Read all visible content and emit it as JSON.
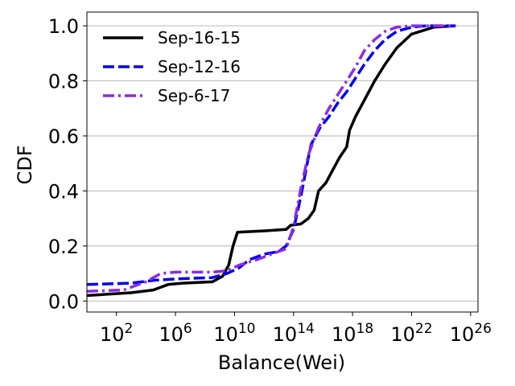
{
  "chart_data": {
    "type": "line",
    "title": "",
    "xlabel": "Balance(Wei)",
    "ylabel": "CDF",
    "xscale": "log10",
    "xlim": [
      0,
      26.5
    ],
    "ylim": [
      -0.04,
      1.05
    ],
    "grid": "horizontal",
    "legend_position": "top-left",
    "xticks": [
      {
        "base": "10",
        "exp": "2",
        "value": 2
      },
      {
        "base": "10",
        "exp": "6",
        "value": 6
      },
      {
        "base": "10",
        "exp": "10",
        "value": 10
      },
      {
        "base": "10",
        "exp": "14",
        "value": 14
      },
      {
        "base": "10",
        "exp": "18",
        "value": 18
      },
      {
        "base": "10",
        "exp": "22",
        "value": 22
      },
      {
        "base": "10",
        "exp": "26",
        "value": 26
      }
    ],
    "yticks": [
      {
        "label": "0.0",
        "value": 0.0
      },
      {
        "label": "0.2",
        "value": 0.2
      },
      {
        "label": "0.4",
        "value": 0.4
      },
      {
        "label": "0.6",
        "value": 0.6
      },
      {
        "label": "0.8",
        "value": 0.8
      },
      {
        "label": "1.0",
        "value": 1.0
      }
    ],
    "series": [
      {
        "name": "Sep-16-15",
        "color": "#000000",
        "dash": "solid",
        "x": [
          0,
          3,
          4.5,
          5.5,
          6.5,
          8.5,
          9.2,
          9.6,
          9.9,
          10.2,
          12,
          13.5,
          13.8,
          14.5,
          15,
          15.4,
          15.7,
          16.2,
          16.6,
          17.1,
          17.6,
          17.8,
          18.2,
          18.8,
          19.5,
          20.2,
          21,
          22,
          23.5,
          25
        ],
        "y": [
          0.02,
          0.03,
          0.04,
          0.06,
          0.065,
          0.07,
          0.09,
          0.13,
          0.2,
          0.25,
          0.255,
          0.26,
          0.275,
          0.28,
          0.3,
          0.33,
          0.4,
          0.43,
          0.47,
          0.52,
          0.56,
          0.62,
          0.67,
          0.73,
          0.8,
          0.86,
          0.92,
          0.97,
          0.995,
          1.0
        ]
      },
      {
        "name": "Sep-12-16",
        "color": "#0000ee",
        "dash": "dashed",
        "x": [
          0,
          3,
          4.5,
          6,
          8.5,
          9.5,
          10.3,
          11,
          12,
          13,
          13.5,
          14.0,
          14.5,
          15,
          15.2,
          15.8,
          16.4,
          17,
          17.6,
          18.2,
          18.8,
          19.5,
          20.2,
          21,
          22,
          23,
          25
        ],
        "y": [
          0.06,
          0.065,
          0.075,
          0.08,
          0.085,
          0.1,
          0.12,
          0.15,
          0.17,
          0.18,
          0.2,
          0.26,
          0.38,
          0.52,
          0.57,
          0.63,
          0.67,
          0.72,
          0.76,
          0.81,
          0.86,
          0.91,
          0.95,
          0.98,
          0.995,
          1.0,
          1.0
        ]
      },
      {
        "name": "Sep-6-17",
        "color": "#8a2be2",
        "dash": "dashdot",
        "x": [
          0,
          2.5,
          4,
          5,
          6,
          8.5,
          9.5,
          10.3,
          11.5,
          12.5,
          13.5,
          14.0,
          14.5,
          15,
          15.7,
          16.4,
          17,
          17.6,
          18.2,
          18.8,
          19.5,
          20.2,
          21,
          22,
          25
        ],
        "y": [
          0.035,
          0.04,
          0.07,
          0.1,
          0.105,
          0.105,
          0.11,
          0.13,
          0.15,
          0.17,
          0.19,
          0.27,
          0.41,
          0.53,
          0.63,
          0.7,
          0.75,
          0.8,
          0.85,
          0.91,
          0.95,
          0.98,
          0.995,
          1.0,
          1.0
        ]
      }
    ]
  }
}
